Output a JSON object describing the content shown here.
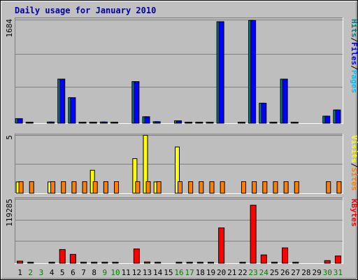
{
  "chart_data": {
    "type": "bar",
    "title": "Daily usage for January 2010",
    "days": [
      "1",
      "2",
      "3",
      "4",
      "5",
      "6",
      "7",
      "8",
      "9",
      "10",
      "11",
      "12",
      "13",
      "14",
      "15",
      "16",
      "17",
      "18",
      "19",
      "20",
      "21",
      "22",
      "23",
      "24",
      "25",
      "26",
      "27",
      "28",
      "29",
      "30",
      "31"
    ],
    "weekend_days": [
      "2",
      "3",
      "9",
      "10",
      "16",
      "17",
      "23",
      "24",
      "30",
      "31"
    ],
    "colors": {
      "background": "#c0c0c0",
      "plot_background": "#bebebe",
      "gridline": "#808080",
      "title": "#0000a0",
      "hits": "#008080",
      "files": "#0000ff",
      "pages": "#00c0ff",
      "visits": "#ffff00",
      "sites": "#ff8000",
      "kbytes": "#ff0000",
      "weekday_label": "#000000",
      "weekend_label": "#008000"
    },
    "panels": [
      {
        "id": "hits-files-pages",
        "ymax": "1684",
        "ymax_value": 1684,
        "legend": [
          {
            "label": "Pages",
            "color": "#00c0ff"
          },
          {
            "label": "/",
            "color": "#000000"
          },
          {
            "label": "Files",
            "color": "#0000ff"
          },
          {
            "label": "/",
            "color": "#000000"
          },
          {
            "label": "Hits",
            "color": "#008080"
          }
        ],
        "series": [
          {
            "name": "Hits",
            "color": "#008080",
            "values": [
              80,
              20,
              0,
              25,
              720,
              420,
              15,
              15,
              25,
              15,
              0,
              680,
              110,
              30,
              0,
              45,
              20,
              20,
              20,
              1650,
              0,
              15,
              1670,
              330,
              15,
              720,
              20,
              0,
              0,
              120,
              220
            ]
          },
          {
            "name": "Files",
            "color": "#0000ff",
            "values": [
              80,
              20,
              0,
              25,
              720,
              420,
              15,
              15,
              25,
              15,
              0,
              680,
              110,
              30,
              0,
              45,
              20,
              20,
              20,
              1650,
              0,
              15,
              1670,
              330,
              15,
              720,
              20,
              0,
              0,
              120,
              220
            ]
          },
          {
            "name": "Pages",
            "color": "#00c0ff",
            "values": [
              0,
              0,
              0,
              0,
              0,
              0,
              0,
              0,
              0,
              0,
              0,
              0,
              0,
              0,
              0,
              0,
              0,
              0,
              0,
              0,
              0,
              0,
              0,
              0,
              0,
              0,
              0,
              0,
              0,
              0,
              0
            ]
          }
        ]
      },
      {
        "id": "visits-sites",
        "ymax": "5",
        "ymax_value": 5,
        "legend": [
          {
            "label": "Sites",
            "color": "#ff8000"
          },
          {
            "label": "/",
            "color": "#000000"
          },
          {
            "label": "Visits",
            "color": "#ffff00"
          }
        ],
        "series": [
          {
            "name": "Visits",
            "color": "#ffff00",
            "values": [
              1,
              0,
              0,
              1,
              0,
              0,
              0,
              2,
              0,
              0,
              0,
              3,
              5,
              1,
              0,
              4,
              0,
              0,
              0,
              0,
              0,
              0,
              0,
              0,
              0,
              0,
              0,
              0,
              0,
              0,
              0
            ]
          },
          {
            "name": "Sites",
            "color": "#ff8000",
            "values": [
              1,
              1,
              0,
              1,
              1,
              1,
              1,
              1,
              1,
              1,
              0,
              1,
              1,
              1,
              0,
              1,
              1,
              1,
              1,
              1,
              0,
              1,
              1,
              1,
              1,
              1,
              1,
              0,
              0,
              1,
              1
            ]
          }
        ]
      },
      {
        "id": "kbytes",
        "ymax": "119285",
        "ymax_value": 119285,
        "legend": [
          {
            "label": "KBytes",
            "color": "#ff0000"
          }
        ],
        "series": [
          {
            "name": "KBytes",
            "color": "#ff0000",
            "values": [
              4500,
              2000,
              0,
              2000,
              26000,
              17000,
              1500,
              1200,
              1000,
              800,
              0,
              27000,
              3000,
              1000,
              0,
              1500,
              1000,
              1000,
              1000,
              66000,
              0,
              800,
              108000,
              16000,
              2500,
              29000,
              1000,
              0,
              0,
              5500,
              14000
            ]
          }
        ]
      }
    ]
  }
}
